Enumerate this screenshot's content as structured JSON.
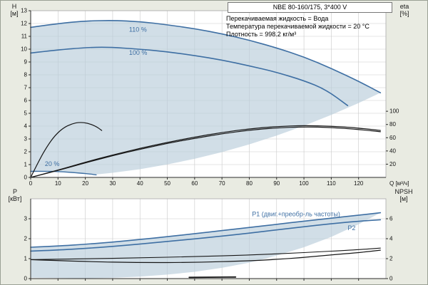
{
  "title_box": "NBE 80-160/175, 3*400 V",
  "info_lines": [
    "Перекачиваемая жидкость = Вода",
    "Температура перекачиваемой жидкости = 20 °C",
    "Плотность = 998.2 кг/м³"
  ],
  "axis_corner": {
    "h1": "H",
    "h2": "[м]",
    "eta1": "eta",
    "eta2": "[%]",
    "p1": "P",
    "p2": "[кВт]",
    "npsh1": "NPSH",
    "npsh2": "[м]"
  },
  "colors": {
    "background": "#e9ebe2",
    "plot_bg": "#ffffff",
    "grid": "#c9c9c9",
    "frame": "#aaaaaa",
    "axis": "#2b2b2b",
    "text": "#111111",
    "blue": "#3e6fa3",
    "black": "#161616",
    "envelope": "#b9cdda"
  },
  "chart_data": [
    {
      "id": "hq",
      "type": "line",
      "title": "NBE 80-160/175, 3*400 V",
      "x": {
        "min": 0,
        "max": 130,
        "ticks": [
          0,
          10,
          20,
          30,
          40,
          50,
          60,
          70,
          80,
          90,
          100,
          110,
          120
        ],
        "show_labels": true,
        "label": "Q [м³/ч]"
      },
      "y_left": {
        "min": 0,
        "max": 13,
        "ticks": [
          0,
          1,
          2,
          3,
          4,
          5,
          6,
          7,
          8,
          9,
          10,
          11,
          12,
          13
        ],
        "label": "H [м]"
      },
      "y_right": {
        "min": 0,
        "max": 252,
        "ticks": [
          20,
          40,
          60,
          80,
          100
        ],
        "label": "eta [%]"
      },
      "envelope": {
        "points": [
          [
            0,
            0.47
          ],
          [
            0,
            11.7
          ],
          [
            10,
            12.0
          ],
          [
            20,
            12.2
          ],
          [
            30,
            12.25
          ],
          [
            40,
            12.15
          ],
          [
            50,
            11.9
          ],
          [
            60,
            11.6
          ],
          [
            70,
            11.2
          ],
          [
            80,
            10.7
          ],
          [
            90,
            10.1
          ],
          [
            100,
            9.4
          ],
          [
            110,
            8.5
          ],
          [
            120,
            7.5
          ],
          [
            128,
            6.6
          ],
          [
            120,
            5.8
          ],
          [
            110,
            4.87
          ],
          [
            100,
            4.03
          ],
          [
            90,
            3.26
          ],
          [
            80,
            2.58
          ],
          [
            70,
            1.97
          ],
          [
            60,
            1.45
          ],
          [
            50,
            1.01
          ],
          [
            40,
            0.64
          ],
          [
            30,
            0.36
          ],
          [
            24,
            0.23
          ],
          [
            18,
            0.34
          ],
          [
            12,
            0.44
          ],
          [
            6,
            0.48
          ]
        ]
      },
      "series": [
        {
          "name": "speed-110",
          "axis": "left",
          "color": "blue",
          "width": 1.6,
          "points": [
            [
              0,
              11.7
            ],
            [
              10,
              12.0
            ],
            [
              20,
              12.2
            ],
            [
              30,
              12.25
            ],
            [
              40,
              12.15
            ],
            [
              50,
              11.9
            ],
            [
              60,
              11.6
            ],
            [
              70,
              11.2
            ],
            [
              80,
              10.7
            ],
            [
              90,
              10.1
            ],
            [
              100,
              9.4
            ],
            [
              110,
              8.5
            ],
            [
              120,
              7.5
            ],
            [
              128,
              6.6
            ]
          ]
        },
        {
          "name": "speed-100",
          "axis": "left",
          "color": "blue",
          "width": 1.6,
          "points": [
            [
              0,
              9.7
            ],
            [
              10,
              9.95
            ],
            [
              20,
              10.12
            ],
            [
              28,
              10.17
            ],
            [
              40,
              10.0
            ],
            [
              50,
              9.8
            ],
            [
              60,
              9.5
            ],
            [
              70,
              9.15
            ],
            [
              80,
              8.7
            ],
            [
              90,
              8.2
            ],
            [
              100,
              7.55
            ],
            [
              108,
              6.85
            ],
            [
              116,
              5.6
            ]
          ]
        },
        {
          "name": "speed-20",
          "axis": "left",
          "color": "blue",
          "width": 1.4,
          "points": [
            [
              0,
              0.47
            ],
            [
              6,
              0.48
            ],
            [
              12,
              0.44
            ],
            [
              18,
              0.34
            ],
            [
              22,
              0.26
            ],
            [
              24,
              0.2
            ]
          ]
        },
        {
          "name": "eta-total",
          "axis": "right",
          "color": "black",
          "width": 1.2,
          "points": [
            [
              0,
              0
            ],
            [
              10,
              11
            ],
            [
              20,
              23
            ],
            [
              30,
              34
            ],
            [
              40,
              44
            ],
            [
              50,
              53
            ],
            [
              60,
              61
            ],
            [
              70,
              68
            ],
            [
              80,
              73.5
            ],
            [
              90,
              77
            ],
            [
              100,
              78.5
            ],
            [
              110,
              77.5
            ],
            [
              120,
              74.5
            ],
            [
              128,
              71
            ]
          ]
        },
        {
          "name": "eta-pump",
          "axis": "right",
          "color": "black",
          "width": 1.2,
          "points": [
            [
              0,
              0
            ],
            [
              10,
              10.5
            ],
            [
              20,
              22
            ],
            [
              30,
              33
            ],
            [
              40,
              42.5
            ],
            [
              50,
              51.5
            ],
            [
              60,
              59
            ],
            [
              70,
              66
            ],
            [
              80,
              71.5
            ],
            [
              90,
              75
            ],
            [
              100,
              76.5
            ],
            [
              110,
              75.5
            ],
            [
              120,
              72.5
            ],
            [
              128,
              69
            ]
          ]
        },
        {
          "name": "eta-low-speed",
          "axis": "right",
          "color": "black",
          "width": 1.2,
          "points": [
            [
              0,
              0
            ],
            [
              3,
              25
            ],
            [
              6,
              47
            ],
            [
              9,
              64
            ],
            [
              12,
              75
            ],
            [
              15,
              81
            ],
            [
              18,
              83.5
            ],
            [
              21,
              82
            ],
            [
              24,
              77
            ],
            [
              26,
              71
            ]
          ]
        }
      ],
      "annotations": [
        {
          "text": "110 %",
          "x": 36,
          "y": 11.35,
          "axis": "left",
          "color": "blue"
        },
        {
          "text": "100 %",
          "x": 36,
          "y": 9.55,
          "axis": "left",
          "color": "blue"
        },
        {
          "text": "20 %",
          "x": 5.2,
          "y": 0.9,
          "axis": "left",
          "color": "blue"
        }
      ]
    },
    {
      "id": "power",
      "type": "line",
      "x": {
        "min": 0,
        "max": 130,
        "ticks": [
          0,
          10,
          20,
          30,
          40,
          50,
          60,
          70,
          80,
          90,
          100,
          110,
          120
        ],
        "show_labels": false,
        "label": ""
      },
      "y_left": {
        "min": 0,
        "max": 4,
        "ticks": [
          0,
          1,
          2,
          3
        ],
        "label": "P [кВт]"
      },
      "y_right": {
        "min": 0,
        "max": 8,
        "ticks": [
          0,
          2,
          4,
          6
        ],
        "label": "NPSH [м]"
      },
      "envelope": {
        "points": [
          [
            0,
            0.05
          ],
          [
            0,
            1.57
          ],
          [
            10,
            1.63
          ],
          [
            20,
            1.72
          ],
          [
            30,
            1.83
          ],
          [
            40,
            1.96
          ],
          [
            50,
            2.1
          ],
          [
            60,
            2.25
          ],
          [
            70,
            2.41
          ],
          [
            80,
            2.56
          ],
          [
            90,
            2.72
          ],
          [
            100,
            2.88
          ],
          [
            110,
            3.03
          ],
          [
            120,
            3.18
          ],
          [
            128,
            3.3
          ],
          [
            120,
            2.72
          ],
          [
            110,
            2.09
          ],
          [
            100,
            1.57
          ],
          [
            90,
            1.15
          ],
          [
            80,
            0.8
          ],
          [
            70,
            0.54
          ],
          [
            60,
            0.34
          ],
          [
            50,
            0.2
          ],
          [
            40,
            0.1
          ],
          [
            30,
            0.04
          ],
          [
            20,
            0.01
          ]
        ]
      },
      "series": [
        {
          "name": "p1",
          "axis": "left",
          "color": "blue",
          "width": 1.6,
          "points": [
            [
              0,
              1.57
            ],
            [
              10,
              1.63
            ],
            [
              20,
              1.72
            ],
            [
              30,
              1.83
            ],
            [
              40,
              1.96
            ],
            [
              50,
              2.1
            ],
            [
              60,
              2.25
            ],
            [
              70,
              2.41
            ],
            [
              80,
              2.56
            ],
            [
              90,
              2.72
            ],
            [
              100,
              2.88
            ],
            [
              110,
              3.03
            ],
            [
              120,
              3.18
            ],
            [
              128,
              3.3
            ]
          ]
        },
        {
          "name": "p2",
          "axis": "left",
          "color": "blue",
          "width": 1.6,
          "points": [
            [
              0,
              1.38
            ],
            [
              10,
              1.43
            ],
            [
              20,
              1.51
            ],
            [
              30,
              1.61
            ],
            [
              40,
              1.73
            ],
            [
              50,
              1.86
            ],
            [
              60,
              1.99
            ],
            [
              70,
              2.13
            ],
            [
              80,
              2.28
            ],
            [
              90,
              2.44
            ],
            [
              100,
              2.6
            ],
            [
              110,
              2.75
            ],
            [
              120,
              2.88
            ],
            [
              128,
              2.95
            ]
          ]
        },
        {
          "name": "p-shaft",
          "axis": "left",
          "color": "black",
          "width": 1.1,
          "points": [
            [
              0,
              0.95
            ],
            [
              20,
              0.99
            ],
            [
              40,
              1.04
            ],
            [
              60,
              1.1
            ],
            [
              80,
              1.18
            ],
            [
              100,
              1.3
            ],
            [
              120,
              1.45
            ],
            [
              128,
              1.53
            ]
          ]
        },
        {
          "name": "npsh",
          "axis": "right",
          "color": "black",
          "width": 1.2,
          "points": [
            [
              0,
              1.9
            ],
            [
              20,
              1.7
            ],
            [
              40,
              1.6
            ],
            [
              60,
              1.62
            ],
            [
              80,
              1.78
            ],
            [
              90,
              1.92
            ],
            [
              100,
              2.12
            ],
            [
              110,
              2.38
            ],
            [
              120,
              2.6
            ],
            [
              128,
              2.85
            ]
          ]
        },
        {
          "name": "p-min-speed",
          "axis": "left",
          "color": "black",
          "width": 1.8,
          "points": [
            [
              58,
              0.06
            ],
            [
              68,
              0.07
            ],
            [
              75,
              0.08
            ]
          ]
        }
      ],
      "annotations": [
        {
          "text": "P1 (двиг.+преобр-ль частоты)",
          "x": 81,
          "y": 3.13,
          "axis": "left",
          "color": "blue"
        },
        {
          "text": "P2",
          "x": 116,
          "y": 2.42,
          "axis": "left",
          "color": "blue"
        }
      ]
    }
  ]
}
